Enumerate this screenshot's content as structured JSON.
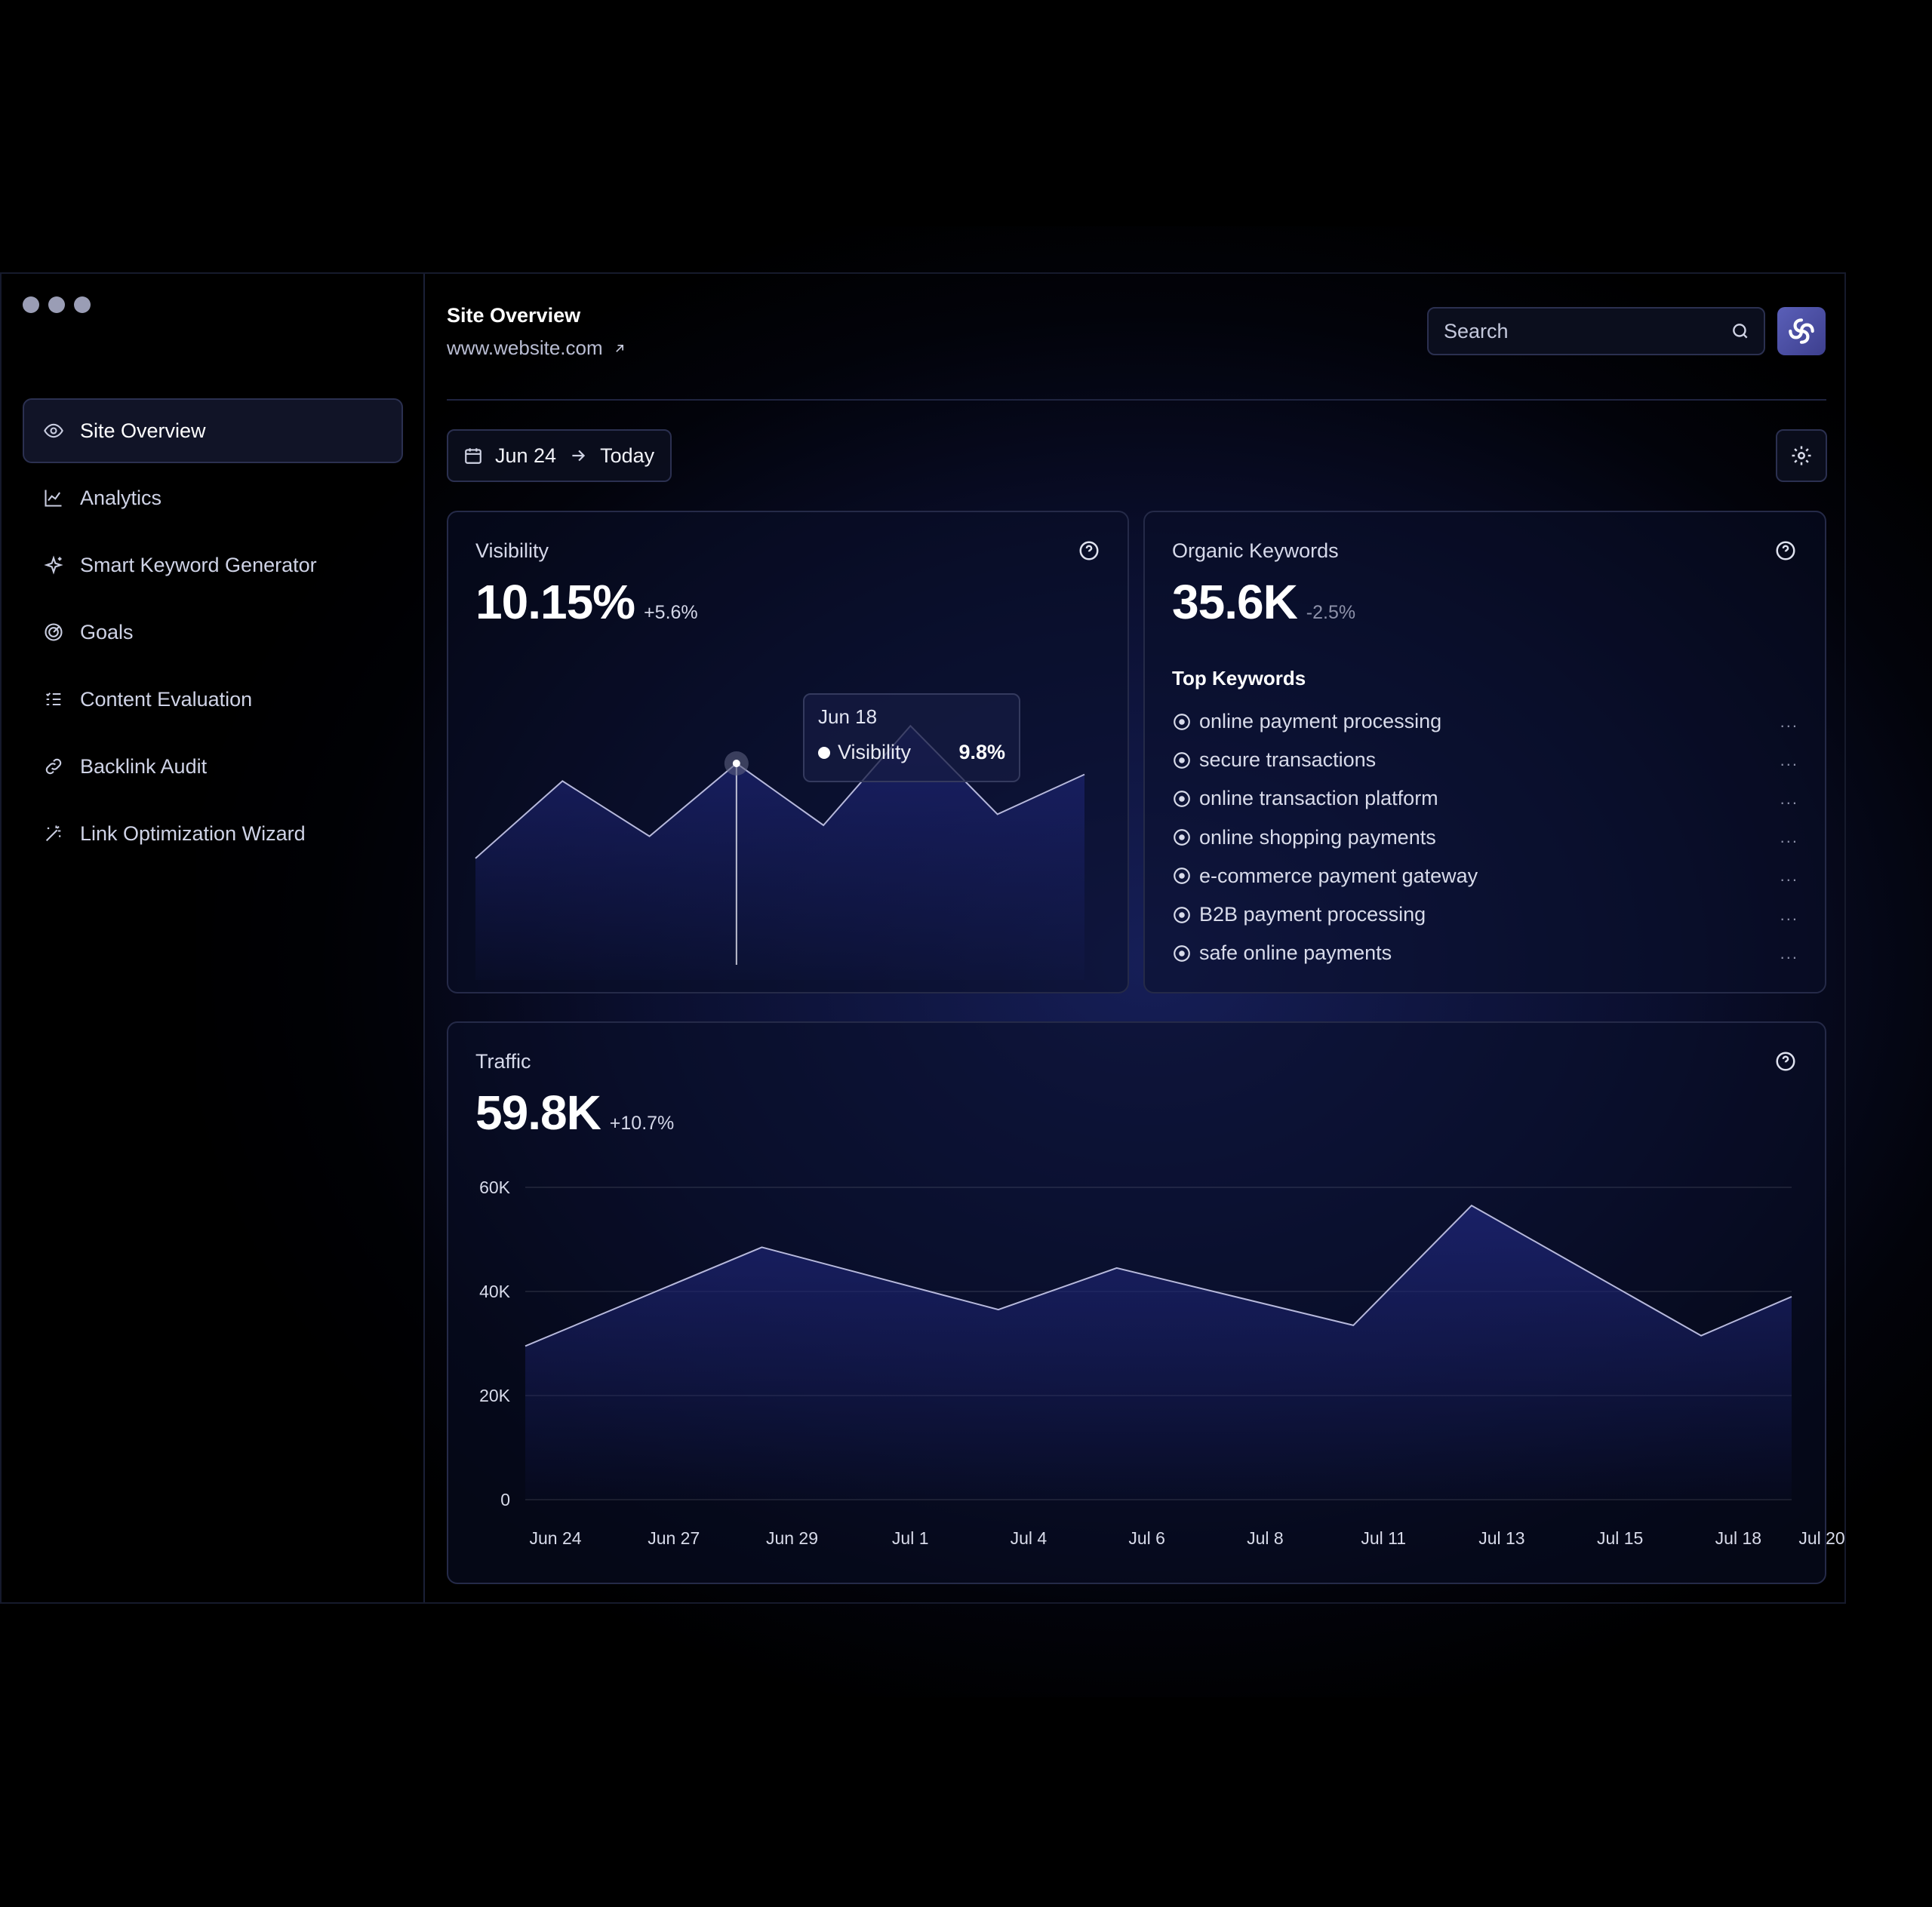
{
  "window_dots": [
    "",
    "",
    ""
  ],
  "sidebar": {
    "items": [
      {
        "label": "Site Overview",
        "icon": "eye-icon",
        "active": true
      },
      {
        "label": "Analytics",
        "icon": "line-chart-icon"
      },
      {
        "label": "Smart Keyword Generator",
        "icon": "sparkle-icon"
      },
      {
        "label": "Goals",
        "icon": "target-icon"
      },
      {
        "label": "Content Evaluation",
        "icon": "checklist-icon"
      },
      {
        "label": "Backlink Audit",
        "icon": "link-icon"
      },
      {
        "label": "Link Optimization Wizard",
        "icon": "magic-wand-icon"
      }
    ]
  },
  "header": {
    "title": "Site Overview",
    "site": "www.website.com"
  },
  "search": {
    "placeholder": "Search"
  },
  "date_range": {
    "start": "Jun 24",
    "end": "Today"
  },
  "visibility": {
    "label": "Visibility",
    "value": "10.15%",
    "delta": "+5.6%",
    "tooltip": {
      "date": "Jun 18",
      "series": "Visibility",
      "value": "9.8%"
    }
  },
  "organic": {
    "label": "Organic Keywords",
    "value": "35.6K",
    "delta": "-2.5%",
    "top_title": "Top Keywords",
    "keywords": [
      "online payment processing",
      "secure transactions",
      "online transaction platform",
      "online shopping payments",
      "e-commerce payment gateway",
      "B2B payment processing",
      "safe online payments"
    ],
    "more": "..."
  },
  "traffic": {
    "label": "Traffic",
    "value": "59.8K",
    "delta": "+10.7%"
  },
  "colors": {
    "background": "#000000",
    "accent": "#5a5fb8",
    "line": "#b7b9dc",
    "area": "#1c2370"
  },
  "chart_data": [
    {
      "type": "area",
      "title": "Visibility",
      "x": [
        0,
        1,
        2,
        3,
        4,
        5,
        6,
        7
      ],
      "values": [
        5.5,
        9.0,
        6.5,
        9.8,
        7.0,
        11.5,
        7.5,
        9.3
      ],
      "ylim": [
        0,
        14
      ],
      "highlight_index": 3,
      "grid": false
    },
    {
      "type": "area",
      "title": "Traffic",
      "categories": [
        "Jun 24",
        "Jun 27",
        "Jun 29",
        "Jul 1",
        "Jul 4",
        "Jul 6",
        "Jul 8",
        "Jul 11",
        "Jul 13",
        "Jul 15",
        "Jul 18",
        "Jul 20"
      ],
      "x": [
        0,
        1.7,
        3.4,
        5.1,
        6.8,
        8.5,
        10.2,
        11.9,
        13.6,
        15.3,
        17.0,
        18.2
      ],
      "series_points": [
        {
          "x": 0,
          "y": 29500
        },
        {
          "x": 3.4,
          "y": 48500
        },
        {
          "x": 6.8,
          "y": 36500
        },
        {
          "x": 8.5,
          "y": 44500
        },
        {
          "x": 11.9,
          "y": 33500
        },
        {
          "x": 13.6,
          "y": 56500
        },
        {
          "x": 16.9,
          "y": 31500
        },
        {
          "x": 18.2,
          "y": 39000
        }
      ],
      "yticks": [
        "60K",
        "40K",
        "20K",
        "0"
      ],
      "ytick_values": [
        60000,
        40000,
        20000,
        0
      ],
      "ylim": [
        0,
        60000
      ],
      "grid": true
    }
  ]
}
